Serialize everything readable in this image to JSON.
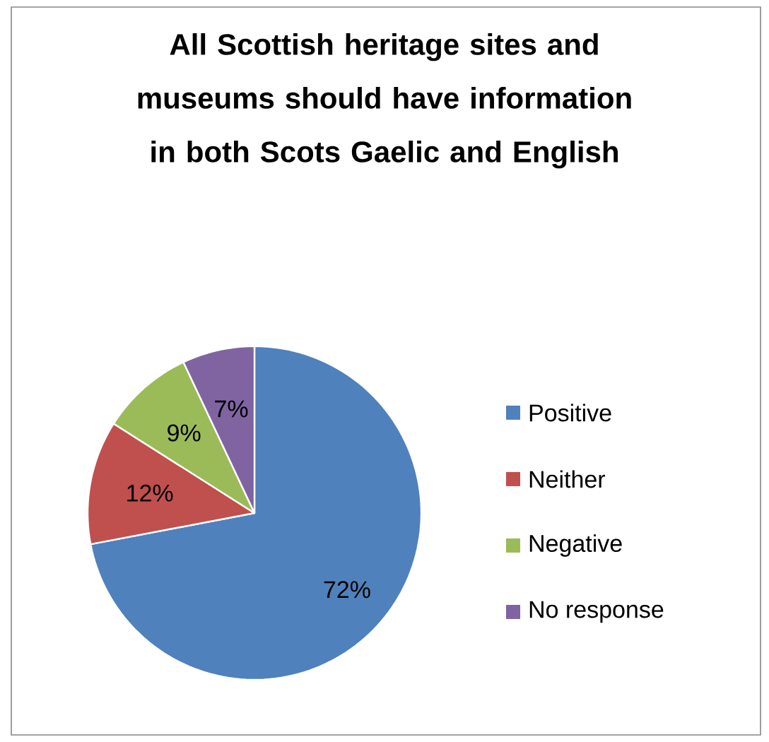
{
  "chart_data": {
    "type": "pie",
    "title": "All Scottish heritage sites and museums should have information in both Scots Gaelic and English",
    "categories": [
      "Positive",
      "Neither",
      "Negative",
      "No response"
    ],
    "values": [
      72,
      12,
      9,
      7
    ],
    "value_labels": [
      "72%",
      "12%",
      "9%",
      "7%"
    ],
    "colors": [
      "#4f81bd",
      "#c0504d",
      "#9bbb59",
      "#8064a2"
    ],
    "legend": "right"
  }
}
